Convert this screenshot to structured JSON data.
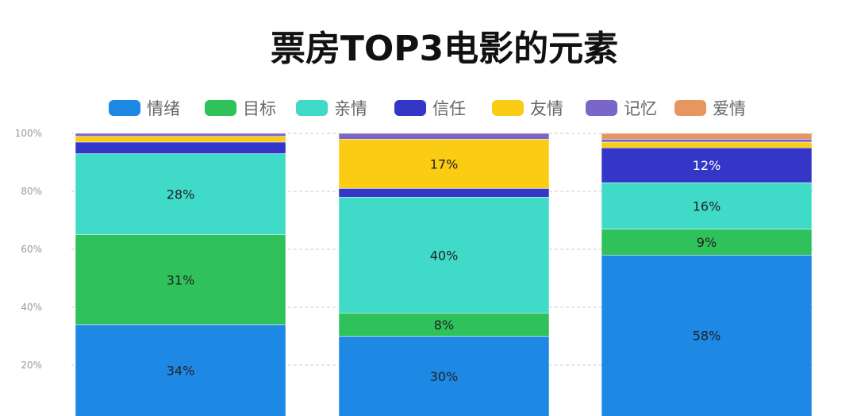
{
  "chart_data": {
    "type": "bar",
    "stacked": true,
    "title": "票房TOP3电影的元素",
    "categories": [
      "",
      "",
      ""
    ],
    "ylim": [
      0,
      100
    ],
    "yticks": [
      "20%",
      "40%",
      "60%",
      "80%",
      "100%"
    ],
    "grid": true,
    "legend_position": "top",
    "series": [
      {
        "name": "情绪",
        "color": "#1e88e5",
        "values": [
          34,
          30,
          58
        ]
      },
      {
        "name": "目标",
        "color": "#2fc25b",
        "values": [
          31,
          8,
          9
        ]
      },
      {
        "name": "亲情",
        "color": "#40dbc8",
        "values": [
          28,
          40,
          16
        ]
      },
      {
        "name": "信任",
        "color": "#3436c7",
        "values": [
          4,
          3,
          12
        ]
      },
      {
        "name": "友情",
        "color": "#facc14",
        "values": [
          2,
          17,
          2
        ]
      },
      {
        "name": "记忆",
        "color": "#7a65c8",
        "values": [
          1,
          2,
          1
        ]
      },
      {
        "name": "爱情",
        "color": "#e8965f",
        "values": [
          0,
          0,
          2
        ]
      }
    ],
    "label_min": 8
  }
}
